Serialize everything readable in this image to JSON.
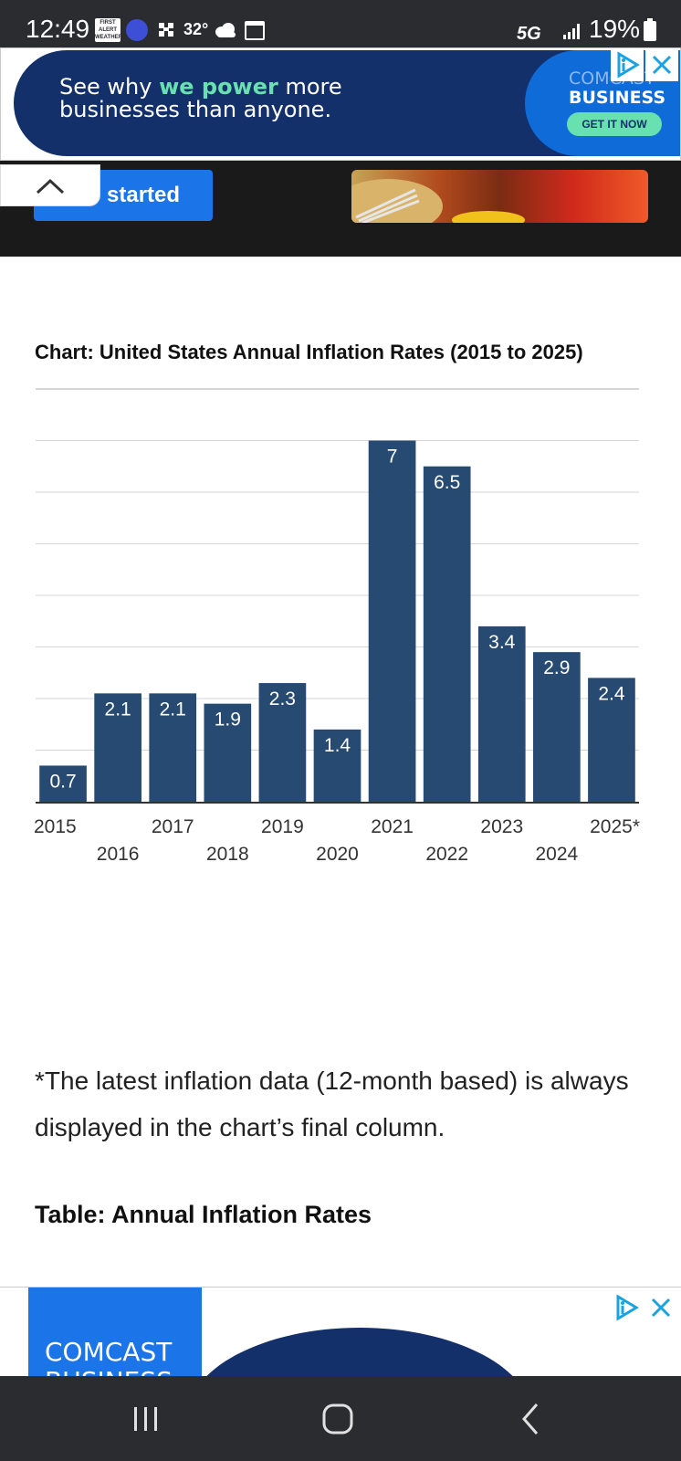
{
  "status_bar": {
    "time": "12:49",
    "alert_badge": "FIRST ALERT WEATHER",
    "temperature": "32°",
    "network": "5G",
    "battery": "19%"
  },
  "ad_top": {
    "headline_pre": "See why ",
    "headline_highlight": "we power",
    "headline_post": " more",
    "headline_line2": "businesses than anyone.",
    "brand_line1": "COMCAST",
    "brand_line2": "BUSINESS",
    "cta": "GET IT NOW",
    "accent": "#68e0b0",
    "background": "#13306b"
  },
  "hero": {
    "button_label": "started"
  },
  "article": {
    "chart_title": "Chart: United States Annual Inflation Rates (2015 to 2025)",
    "footnote": "*The latest inflation data (12-month based) is always displayed in the chart’s final column.",
    "table_heading": "Table: Annual Inflation Rates"
  },
  "chart_data": {
    "type": "bar",
    "title": "Chart: United States Annual Inflation Rates (2015 to 2025)",
    "categories": [
      "2015",
      "2016",
      "2017",
      "2018",
      "2019",
      "2020",
      "2021",
      "2022",
      "2023",
      "2024",
      "2025*"
    ],
    "values": [
      0.7,
      2.1,
      2.1,
      1.9,
      2.3,
      1.4,
      7,
      6.5,
      3.4,
      2.9,
      2.4
    ],
    "data_labels": [
      "0.7",
      "2.1",
      "2.1",
      "1.9",
      "2.3",
      "1.4",
      "7",
      "6.5",
      "3.4",
      "2.9",
      "2.4"
    ],
    "ylim": [
      0,
      8
    ],
    "grid": true,
    "bar_color": "#264a72",
    "xlabel": "",
    "ylabel": ""
  },
  "ad_bottom": {
    "brand_line1": "COMCAST",
    "brand_line2": "BUSINESS"
  }
}
